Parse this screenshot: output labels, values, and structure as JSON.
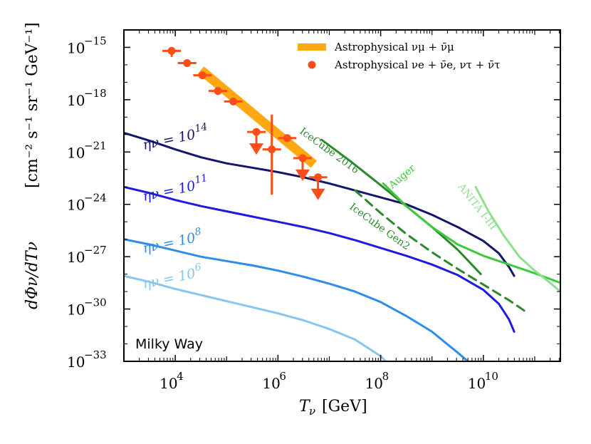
{
  "chart_data": {
    "type": "line",
    "title": "",
    "region_label": "Milky Way",
    "xlabel": {
      "main": "T",
      "sub": "ν",
      "unit": "[GeV]"
    },
    "ylabel": {
      "prefix": "dΦν/dTν",
      "unit": "[cm⁻² s⁻¹ sr⁻¹ GeV⁻¹]"
    },
    "x_scale": "log",
    "y_scale": "log",
    "xlim_log10": [
      3,
      11.5
    ],
    "ylim_log10": [
      -33,
      -14
    ],
    "x_ticks": [
      {
        "value": 4,
        "base": "10",
        "exp": "4"
      },
      {
        "value": 6,
        "base": "10",
        "exp": "6"
      },
      {
        "value": 8,
        "base": "10",
        "exp": "8"
      },
      {
        "value": 10,
        "base": "10",
        "exp": "10"
      }
    ],
    "y_ticks": [
      {
        "value": -15,
        "base": "10",
        "exp": "−15"
      },
      {
        "value": -18,
        "base": "10",
        "exp": "−18"
      },
      {
        "value": -21,
        "base": "10",
        "exp": "−21"
      },
      {
        "value": -24,
        "base": "10",
        "exp": "−24"
      },
      {
        "value": -27,
        "base": "10",
        "exp": "−27"
      },
      {
        "value": -30,
        "base": "10",
        "exp": "−30"
      },
      {
        "value": -33,
        "base": "10",
        "exp": "−33"
      }
    ],
    "legend": {
      "position": "top-right",
      "entries": [
        {
          "label": "Astrophysical νμ + ν̄μ",
          "color": "#ffa812",
          "kind": "band"
        },
        {
          "label": "Astrophysical νe + ν̄e, ντ + ν̄τ",
          "color": "#ff4d1a",
          "kind": "point"
        }
      ]
    },
    "series": [
      {
        "name": "ην = 10¹⁴",
        "color": "#14156e",
        "width": 3,
        "label": {
          "base": "ην = 10",
          "exp": "14"
        },
        "x": [
          3.0,
          3.5,
          4.0,
          4.5,
          5.0,
          5.5,
          6.0,
          6.5,
          7.0,
          7.5,
          8.0,
          8.5,
          9.0,
          9.5,
          10.0,
          10.3,
          10.5,
          10.6
        ],
        "y": [
          -19.9,
          -20.35,
          -20.85,
          -21.3,
          -21.65,
          -21.9,
          -22.15,
          -22.45,
          -22.8,
          -23.2,
          -23.6,
          -24.0,
          -24.6,
          -25.3,
          -26.1,
          -26.8,
          -27.6,
          -28.1
        ]
      },
      {
        "name": "ην = 10¹¹",
        "color": "#1c1ce0",
        "width": 3,
        "label": {
          "base": "ην = 10",
          "exp": "11"
        },
        "x": [
          3.0,
          3.5,
          4.0,
          4.5,
          5.0,
          5.5,
          6.0,
          6.5,
          7.0,
          7.5,
          8.0,
          8.5,
          9.0,
          9.5,
          10.0,
          10.3,
          10.5,
          10.6
        ],
        "y": [
          -23.0,
          -23.35,
          -23.75,
          -24.1,
          -24.4,
          -24.7,
          -25.0,
          -25.3,
          -25.65,
          -26.05,
          -26.5,
          -26.95,
          -27.45,
          -28.05,
          -28.9,
          -29.7,
          -30.6,
          -31.3
        ]
      },
      {
        "name": "ην = 10⁸",
        "color": "#2d8de8",
        "width": 3,
        "label": {
          "base": "ην = 10",
          "exp": "8"
        },
        "x": [
          3.0,
          3.5,
          4.0,
          4.5,
          5.0,
          5.5,
          6.0,
          6.5,
          7.0,
          7.5,
          8.0,
          8.5,
          9.0,
          9.5,
          9.7
        ],
        "y": [
          -26.0,
          -26.3,
          -26.65,
          -27.0,
          -27.25,
          -27.5,
          -27.8,
          -28.15,
          -28.55,
          -29.0,
          -29.6,
          -30.4,
          -31.3,
          -32.5,
          -33.0
        ]
      },
      {
        "name": "ην = 10⁶",
        "color": "#88c5ef",
        "width": 3,
        "label": {
          "base": "ην = 10",
          "exp": "6"
        },
        "x": [
          3.0,
          3.5,
          4.0,
          4.5,
          5.0,
          5.5,
          6.0,
          6.5,
          7.0,
          7.5,
          8.0,
          8.1
        ],
        "y": [
          -28.1,
          -28.45,
          -28.85,
          -29.2,
          -29.55,
          -29.9,
          -30.25,
          -30.65,
          -31.15,
          -31.75,
          -32.7,
          -33.0
        ]
      },
      {
        "name": "IceCube 2016",
        "color": "#2a8a2a",
        "width": 3,
        "label": {
          "base": "IceCube 2016",
          "exp": ""
        },
        "x": [
          6.85,
          7.4,
          8.0,
          8.5,
          9.0,
          9.5,
          9.95
        ],
        "y": [
          -20.3,
          -21.5,
          -22.9,
          -24.1,
          -25.3,
          -26.6,
          -28.0
        ]
      },
      {
        "name": "IceCube Gen2",
        "color": "#2a8a2a",
        "width": 3,
        "dash": "12 8",
        "label": {
          "base": "IceCube Gen2",
          "exp": ""
        },
        "x": [
          7.5,
          8.0,
          8.5,
          9.0,
          9.5,
          10.0,
          10.5,
          10.85
        ],
        "y": [
          -23.2,
          -24.5,
          -25.7,
          -26.75,
          -27.7,
          -28.6,
          -29.5,
          -30.2
        ]
      },
      {
        "name": "Auger",
        "color": "#3dc93d",
        "width": 3,
        "label": {
          "base": "Auger",
          "exp": ""
        },
        "x": [
          8.05,
          8.5,
          9.0,
          9.5,
          10.0,
          10.5,
          11.0,
          11.5
        ],
        "y": [
          -22.8,
          -24.1,
          -25.3,
          -26.3,
          -26.95,
          -27.45,
          -27.95,
          -28.5
        ]
      },
      {
        "name": "ANITA I-III",
        "color": "#8ee08e",
        "width": 3,
        "label": {
          "base": "ANITA I-III",
          "exp": ""
        },
        "x": [
          9.85,
          10.1,
          10.4,
          10.7,
          11.0,
          11.3,
          11.5
        ],
        "y": [
          -23.0,
          -24.4,
          -25.8,
          -27.0,
          -27.8,
          -28.5,
          -29.0
        ]
      }
    ],
    "astrophysical_band": {
      "color": "#ffa812",
      "x": [
        4.5,
        6.7
      ],
      "y": [
        -16.3,
        -21.7
      ]
    },
    "data_points": {
      "color": "#ff4d1a",
      "measured": [
        {
          "x": 3.93,
          "y": -15.2,
          "xerr": 0.18,
          "yerr_lo": 0.35,
          "yerr_hi": 0.0
        },
        {
          "x": 4.23,
          "y": -15.9,
          "xerr": 0.18,
          "yerr_lo": 0.0,
          "yerr_hi": 0.0
        },
        {
          "x": 4.53,
          "y": -16.6,
          "xerr": 0.18,
          "yerr_lo": 0.0,
          "yerr_hi": 0.0
        },
        {
          "x": 4.83,
          "y": -17.5,
          "xerr": 0.18,
          "yerr_lo": 0.0,
          "yerr_hi": 0.0
        },
        {
          "x": 5.13,
          "y": -18.1,
          "xerr": 0.18,
          "yerr_lo": 0.0,
          "yerr_hi": 0.0
        },
        {
          "x": 5.88,
          "y": -20.85,
          "xerr": 0.18,
          "yerr_lo": 2.6,
          "yerr_hi": 2.0
        },
        {
          "x": 6.18,
          "y": -20.2,
          "xerr": 0.18,
          "yerr_lo": 0.0,
          "yerr_hi": 0.0
        }
      ],
      "upper_limits": [
        {
          "x": 5.58,
          "y": -19.85,
          "xerr": 0.18
        },
        {
          "x": 6.48,
          "y": -21.35,
          "xerr": 0.18
        },
        {
          "x": 6.78,
          "y": -22.45,
          "xerr": 0.18
        }
      ]
    }
  }
}
